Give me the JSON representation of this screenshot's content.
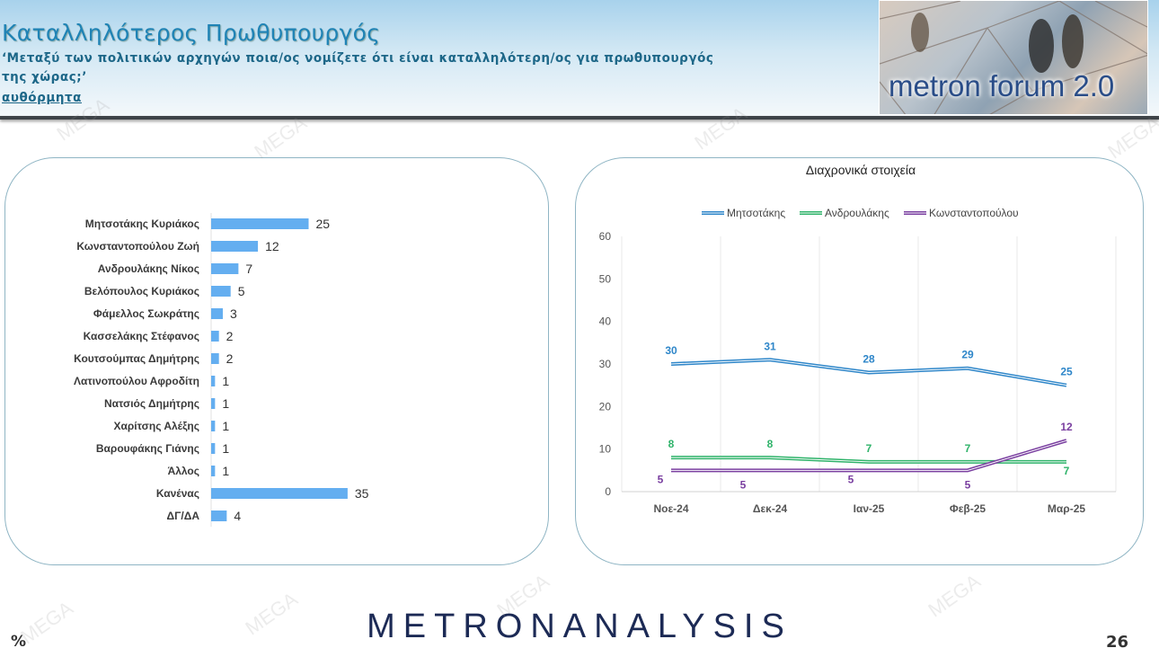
{
  "header": {
    "title": "Καταλληλότερος Πρωθυπουργός",
    "question_line1": "‘Μεταξύ των πολιτικών αρχηγών ποια/ος νομίζετε ότι είναι καταλληλότερη/ος για πρωθυπουργός",
    "question_line2": "της χώρας;’",
    "note": "αυθόρμητα",
    "logo": "metron forum 2.0"
  },
  "footer": {
    "brand": "METRONANALYSIS",
    "unit": "%",
    "page_number": "26"
  },
  "watermark": "MEGA",
  "colors": {
    "bar": "#64aef0",
    "blue": "#2e86c9",
    "green": "#2fb36a",
    "purple": "#7a3fa0",
    "title": "#1f83b5"
  },
  "chart_data": [
    {
      "type": "bar",
      "orientation": "horizontal",
      "categories": [
        "Μητσοτάκης Κυριάκος",
        "Κωνσταντοπούλου Ζωή",
        "Ανδρουλάκης Νίκος",
        "Βελόπουλος Κυριάκος",
        "Φάμελλος Σωκράτης",
        "Κασσελάκης Στέφανος",
        "Κουτσούμπας Δημήτρης",
        "Λατινοπούλου Αφροδίτη",
        "Νατσιός Δημήτρης",
        "Χαρίτσης Αλέξης",
        "Βαρουφάκης Γιάνης",
        "Άλλος",
        "Κανένας",
        "ΔΓ/ΔΑ"
      ],
      "values": [
        25,
        12,
        7,
        5,
        3,
        2,
        2,
        1,
        1,
        1,
        1,
        1,
        35,
        4
      ],
      "data_labels": true,
      "grid": false
    },
    {
      "type": "line",
      "title": "Διαχρονικά στοιχεία",
      "categories": [
        "Νοε-24",
        "Δεκ-24",
        "Ιαν-25",
        "Φεβ-25",
        "Μαρ-25"
      ],
      "ylim": [
        0,
        60
      ],
      "yticks": [
        0,
        10,
        20,
        30,
        40,
        50,
        60
      ],
      "legend": "top",
      "grid": "vertical",
      "series": [
        {
          "name": "Μητσοτάκης",
          "color": "#2e86c9",
          "values": [
            30,
            31,
            28,
            29,
            25
          ]
        },
        {
          "name": "Ανδρουλάκης",
          "color": "#2fb36a",
          "values": [
            8,
            8,
            7,
            7,
            7
          ]
        },
        {
          "name": "Κωνσταντοπούλου",
          "color": "#7a3fa0",
          "values": [
            5,
            5,
            5,
            5,
            12
          ]
        }
      ]
    }
  ]
}
